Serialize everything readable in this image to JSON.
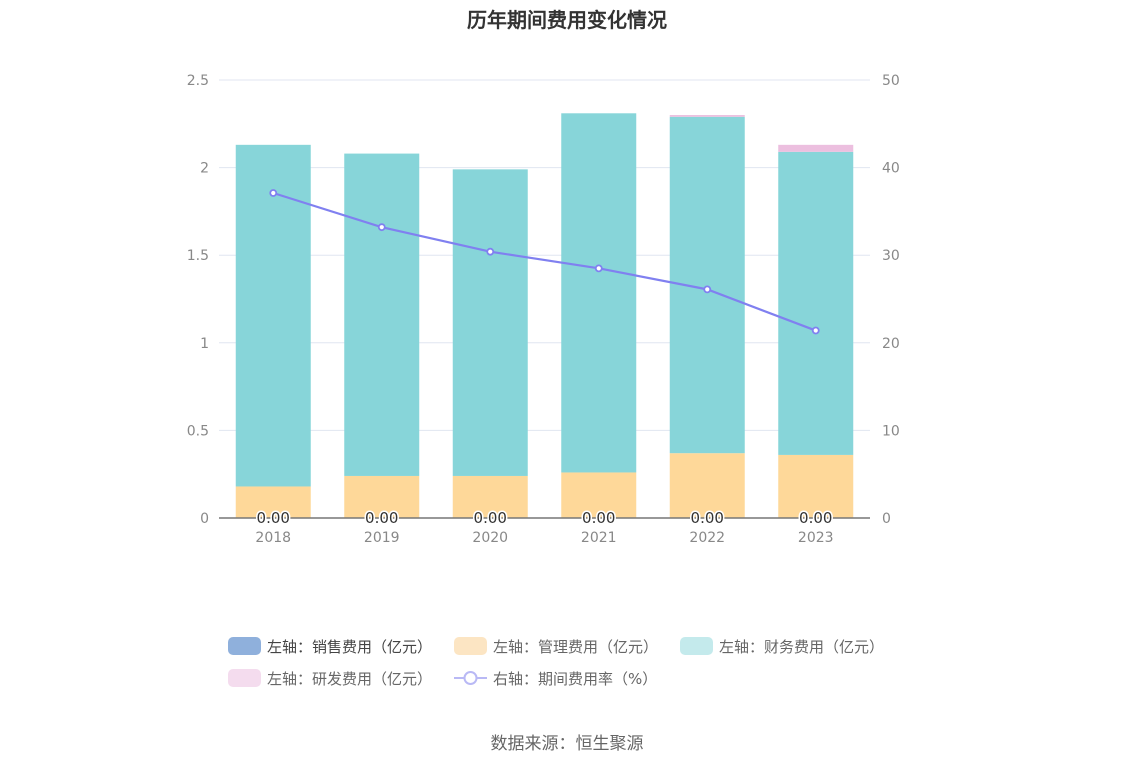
{
  "title": "历年期间费用变化情况",
  "source": "数据来源：恒生聚源",
  "chart_data": {
    "type": "bar",
    "stacked": true,
    "categories": [
      "2018",
      "2019",
      "2020",
      "2021",
      "2022",
      "2023"
    ],
    "y_left": {
      "ylim": [
        0,
        2.5
      ],
      "ticks": [
        "0",
        "0.5",
        "1",
        "1.5",
        "2",
        "2.5"
      ]
    },
    "y_right": {
      "ylim": [
        0,
        50
      ],
      "ticks": [
        "0",
        "10",
        "20",
        "30",
        "40",
        "50"
      ]
    },
    "series": [
      {
        "name": "左轴：销售费用（亿元）",
        "axis": "left",
        "color": "#8fb0dc",
        "values": [
          0,
          0,
          0,
          0,
          0,
          0
        ],
        "data_labels": [
          "0.00",
          "0.00",
          "0.00",
          "0.00",
          "0.00",
          "0.00"
        ]
      },
      {
        "name": "左轴：管理费用（亿元）",
        "axis": "left",
        "color": "#fed899",
        "values": [
          0.18,
          0.24,
          0.24,
          0.26,
          0.37,
          0.36
        ]
      },
      {
        "name": "左轴：财务费用（亿元）",
        "axis": "left",
        "color": "#87d5d9",
        "values": [
          1.95,
          1.84,
          1.75,
          2.05,
          1.92,
          1.73
        ]
      },
      {
        "name": "左轴：研发费用（亿元）",
        "axis": "left",
        "color": "#ecbfdf",
        "values": [
          0,
          0,
          0,
          0,
          0.01,
          0.04
        ]
      },
      {
        "name": "右轴：期间费用率（%）",
        "axis": "right",
        "type": "line",
        "color": "#8080f0",
        "values": [
          37.1,
          33.2,
          30.4,
          28.5,
          26.1,
          21.4
        ]
      }
    ],
    "legend": [
      {
        "label": "左轴：销售费用（亿元）",
        "color": "#8fb0dc"
      },
      {
        "label": "左轴：管理费用（亿元）",
        "color": "#fce5c3"
      },
      {
        "label": "左轴：财务费用（亿元）",
        "color": "#c4eaec"
      },
      {
        "label": "左轴：研发费用（亿元）",
        "color": "#f4dcee"
      },
      {
        "label": "右轴：期间费用率（%）",
        "color": "#b9b9f5"
      }
    ],
    "grid": true,
    "legend_position": "bottom"
  }
}
